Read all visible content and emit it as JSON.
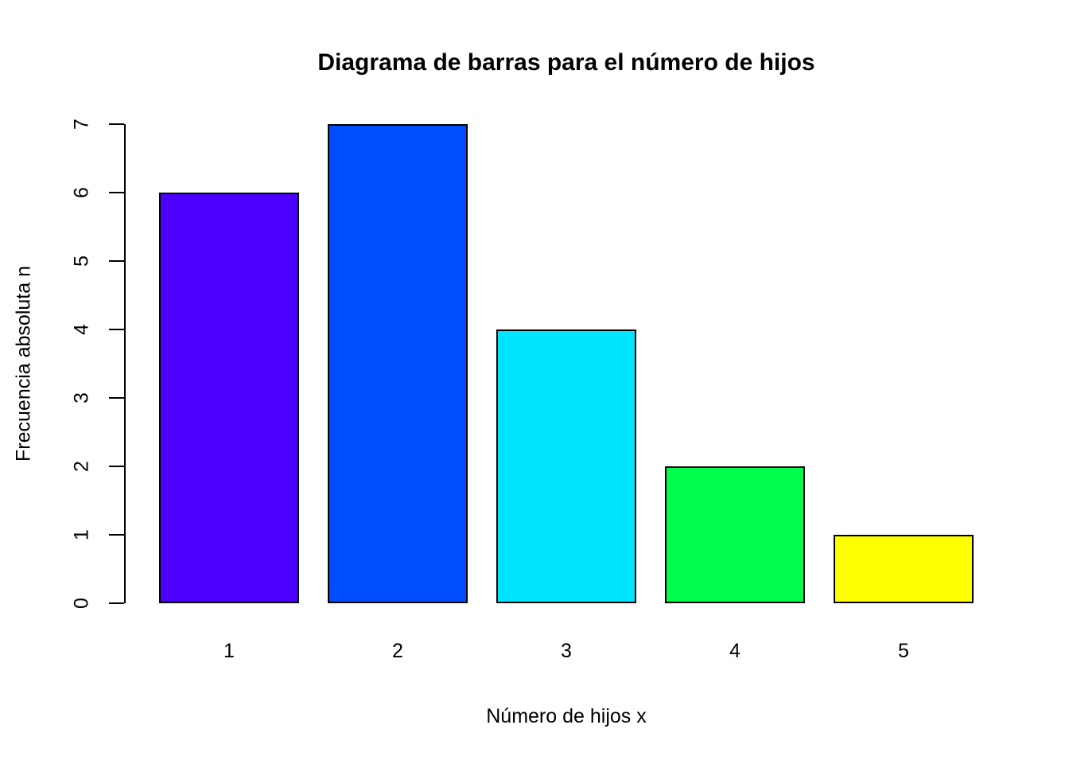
{
  "chart_data": {
    "type": "bar",
    "title": "Diagrama de barras para el número de hijos",
    "xlabel": "Número de hijos x",
    "ylabel": "Frecuencia absoluta n",
    "categories": [
      "1",
      "2",
      "3",
      "4",
      "5"
    ],
    "values": [
      6,
      7,
      4,
      2,
      1
    ],
    "bar_colors": [
      "#4C00FF",
      "#004CFF",
      "#00E5FF",
      "#00FF4D",
      "#FFFF00"
    ],
    "bar_border_color": "#000000",
    "ylim": [
      0,
      7
    ],
    "y_ticks": [
      0,
      1,
      2,
      3,
      4,
      5,
      6,
      7
    ],
    "grid": false,
    "legend": "none",
    "background": "#FFFFFF",
    "axis_color": "#000000"
  }
}
